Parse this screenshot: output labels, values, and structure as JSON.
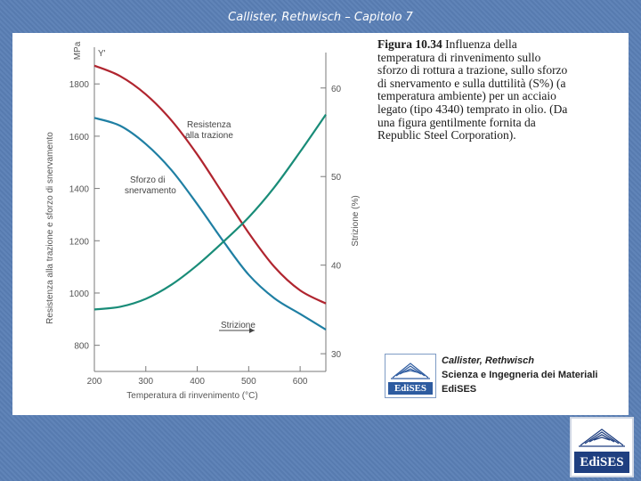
{
  "slide": {
    "title": "Callister, Rethwisch – Capitolo 7"
  },
  "figure": {
    "caption_label": "Figura 10.34",
    "caption_text": "Influenza della temperatura di rinvenimento sullo sforzo di rottura a trazione, sullo sforzo di snervamento e sulla duttilità (S%) (a temperatura ambiente) per un acciaio legato (tipo 4340) temprato in olio. (Da una figura gentilmente fornita da Republic Steel Corporation)."
  },
  "publisher": {
    "logo_text": "EdiSES",
    "authors": "Callister, Rethwisch",
    "book_title": "Scienza e Ingegneria dei Materiali",
    "name": "EdiSES"
  },
  "corner_logo": {
    "text": "EdiSES"
  },
  "chart_data": {
    "type": "line",
    "xlabel": "Temperatura di rinvenimento (°C)",
    "ylabel_left": "Resistenza alla trazione e sforzo di snervamento",
    "ylabel_left_unit": "MPa",
    "ylabel_right": "Strizione (%)",
    "y_top_label": "Y'",
    "x_ticks": [
      200,
      300,
      400,
      500,
      600
    ],
    "y_left_ticks": [
      800,
      1000,
      1200,
      1400,
      1600,
      1800
    ],
    "y_right_ticks": [
      30,
      40,
      50,
      60
    ],
    "xlim": [
      200,
      650
    ],
    "ylim_left": [
      700,
      1920
    ],
    "ylim_right": [
      28,
      64
    ],
    "grid": false,
    "colors": {
      "tensile": "#b0252f",
      "yield": "#1f7fa3",
      "strizione": "#198c78"
    },
    "series": [
      {
        "name": "Resistenza alla trazione",
        "axis": "left",
        "x": [
          200,
          250,
          300,
          350,
          400,
          450,
          500,
          550,
          600,
          650
        ],
        "values": [
          1870,
          1830,
          1760,
          1660,
          1530,
          1380,
          1230,
          1100,
          1010,
          960
        ]
      },
      {
        "name": "Sforzo di snervamento",
        "axis": "left",
        "x": [
          200,
          250,
          300,
          350,
          400,
          450,
          500,
          550,
          600,
          650
        ],
        "values": [
          1670,
          1640,
          1570,
          1470,
          1340,
          1200,
          1070,
          980,
          920,
          860
        ]
      },
      {
        "name": "Strizione",
        "axis": "right",
        "x": [
          200,
          250,
          300,
          350,
          400,
          450,
          500,
          550,
          600,
          650
        ],
        "values": [
          35,
          35.3,
          36.2,
          37.8,
          40,
          42.6,
          45.4,
          48.8,
          52.8,
          57
        ]
      }
    ],
    "labels": {
      "tensile_line1": "Resistenza",
      "tensile_line2": "alla trazione",
      "yield_line1": "Sforzo di",
      "yield_line2": "snervamento",
      "strizione": "Strizione"
    }
  }
}
